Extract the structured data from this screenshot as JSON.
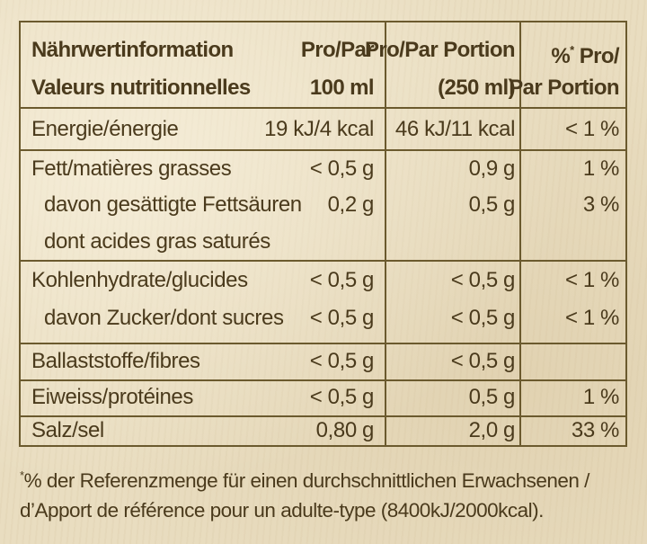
{
  "header": {
    "col1_line1": "Nährwertinformation",
    "col1_line2": "Valeurs nutritionnelles",
    "col2_line1": "Pro/Par",
    "col2_line2": "100 ml",
    "col3_line1": "Pro/Par Portion",
    "col3_line2": "(250 ml)",
    "col4_prefix": "%",
    "col4_asterisk": "*",
    "col4_suffix": " Pro/",
    "col4_line2": "Par Portion"
  },
  "rows": [
    {
      "label": "Energie/énergie",
      "per100": "19 kJ/4 kcal",
      "portion": "46 kJ/11 kcal",
      "pct": "< 1 %"
    },
    {
      "label": "Fett/matières grasses",
      "per100": "< 0,5 g",
      "portion": "0,9 g",
      "pct": "1 %"
    },
    {
      "label": "davon gesättigte Fettsäuren",
      "per100": "0,2 g",
      "portion": "0,5 g",
      "pct": "3 %"
    },
    {
      "label": "dont acides gras saturés",
      "per100": "",
      "portion": "",
      "pct": ""
    },
    {
      "label": "Kohlenhydrate/glucides",
      "per100": "< 0,5 g",
      "portion": "< 0,5 g",
      "pct": "< 1 %"
    },
    {
      "label": "davon Zucker/dont sucres",
      "per100": "< 0,5 g",
      "portion": "< 0,5 g",
      "pct": "< 1 %"
    },
    {
      "label": "Ballaststoffe/fibres",
      "per100": "< 0,5 g",
      "portion": "< 0,5 g",
      "pct": ""
    },
    {
      "label": "Eiweiss/protéines",
      "per100": "< 0,5 g",
      "portion": "0,5 g",
      "pct": "1 %"
    },
    {
      "label": "Salz/sel",
      "per100": "0,80 g",
      "portion": "2,0 g",
      "pct": "33 %"
    }
  ],
  "footnote": {
    "asterisk": "*",
    "line1": "% der Referenzmenge für einen durchschnittlichen Erwachsenen /",
    "line2": "d’Apport de référence pour un adulte-type (8400kJ/2000kcal)."
  }
}
